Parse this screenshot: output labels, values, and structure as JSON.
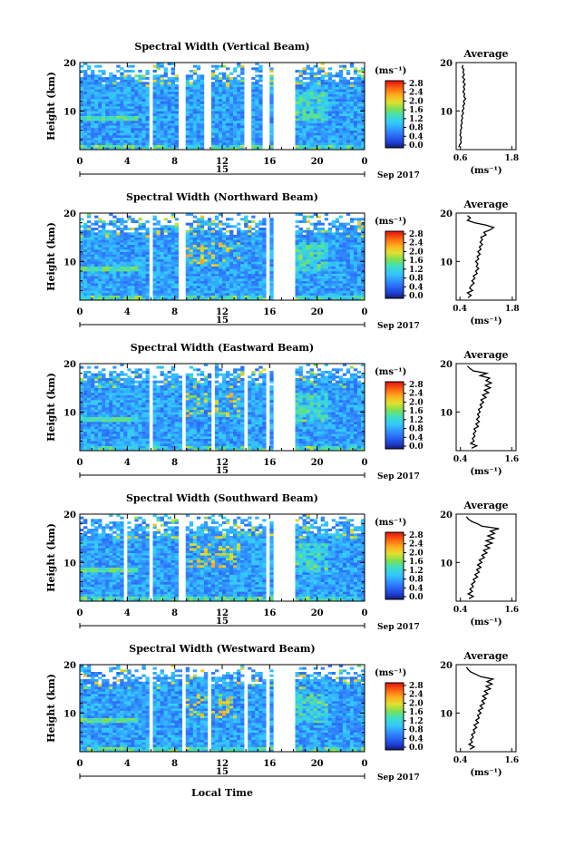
{
  "chart_data": [
    {
      "type": "heatmap",
      "title": "Spectral Width (Vertical Beam)",
      "ylabel": "Height (km)",
      "ylim": [
        2,
        20
      ],
      "yticks": [
        "20",
        "10"
      ],
      "xlim": [
        0,
        24
      ],
      "xticks": [
        "0",
        "4",
        "8",
        "12",
        "16",
        "20",
        "0"
      ],
      "date_label": "15",
      "date_suffix": "Sep 2017",
      "colorbar_unit": "(ms⁻¹)",
      "colorbar_ticks": [
        "2.8",
        "2.4",
        "2.0",
        "1.6",
        "1.2",
        "0.8",
        "0.4",
        "0.0"
      ],
      "colorbar_range": [
        0,
        3.0
      ],
      "gaps_hours": [
        [
          5.8,
          6.2
        ],
        [
          8.4,
          8.8
        ],
        [
          10.6,
          11.0
        ],
        [
          14.0,
          14.4
        ],
        [
          15.3,
          15.6
        ],
        [
          15.8,
          16.0
        ],
        [
          16.4,
          18.3
        ]
      ],
      "average": {
        "title": "Average",
        "xlabel": "(ms⁻¹)",
        "xticks": [
          "0.6",
          "1.8"
        ],
        "xlim": [
          0.5,
          1.9
        ],
        "yticks": [
          "20",
          "10"
        ],
        "profile": [
          [
            0.56,
            2.5
          ],
          [
            0.58,
            3
          ],
          [
            0.62,
            3.5
          ],
          [
            0.6,
            4
          ],
          [
            0.62,
            4.5
          ],
          [
            0.59,
            5
          ],
          [
            0.61,
            5.5
          ],
          [
            0.6,
            6
          ],
          [
            0.63,
            6.5
          ],
          [
            0.61,
            7
          ],
          [
            0.64,
            7.5
          ],
          [
            0.62,
            8
          ],
          [
            0.65,
            8.5
          ],
          [
            0.63,
            9
          ],
          [
            0.67,
            9.5
          ],
          [
            0.64,
            10
          ],
          [
            0.68,
            10.5
          ],
          [
            0.66,
            11
          ],
          [
            0.7,
            11.5
          ],
          [
            0.67,
            12
          ],
          [
            0.72,
            12.5
          ],
          [
            0.68,
            13
          ],
          [
            0.7,
            13.5
          ],
          [
            0.66,
            14
          ],
          [
            0.7,
            14.5
          ],
          [
            0.67,
            15
          ],
          [
            0.71,
            15.5
          ],
          [
            0.66,
            16
          ],
          [
            0.7,
            16.5
          ],
          [
            0.65,
            17
          ],
          [
            0.69,
            17.5
          ],
          [
            0.66,
            18
          ],
          [
            0.68,
            18.5
          ],
          [
            0.64,
            19
          ],
          [
            0.66,
            19.5
          ]
        ]
      }
    },
    {
      "type": "heatmap",
      "title": "Spectral Width (Northward Beam)",
      "ylabel": "Height (km)",
      "ylim": [
        2,
        20
      ],
      "yticks": [
        "20",
        "10"
      ],
      "xlim": [
        0,
        24
      ],
      "xticks": [
        "0",
        "4",
        "8",
        "12",
        "16",
        "20",
        "0"
      ],
      "date_label": "15",
      "date_suffix": "Sep 2017",
      "colorbar_unit": "(ms⁻¹)",
      "colorbar_ticks": [
        "2.8",
        "2.4",
        "2.0",
        "1.6",
        "1.2",
        "0.8",
        "0.4",
        "0.0"
      ],
      "colorbar_range": [
        0,
        3.0
      ],
      "gaps_hours": [
        [
          5.8,
          6.2
        ],
        [
          8.4,
          8.8
        ],
        [
          15.8,
          16.0
        ],
        [
          16.4,
          18.3
        ]
      ],
      "average": {
        "title": "Average",
        "xlabel": "(ms⁻¹)",
        "xticks": [
          "0.4",
          "1.8"
        ],
        "xlim": [
          0.3,
          1.9
        ],
        "yticks": [
          "20",
          "10"
        ],
        "profile": [
          [
            0.62,
            2.5
          ],
          [
            0.7,
            3
          ],
          [
            0.6,
            3.5
          ],
          [
            0.74,
            4
          ],
          [
            0.66,
            4.5
          ],
          [
            0.7,
            5
          ],
          [
            0.78,
            5.5
          ],
          [
            0.72,
            6
          ],
          [
            0.8,
            6.5
          ],
          [
            0.76,
            7
          ],
          [
            0.86,
            7.5
          ],
          [
            0.82,
            8
          ],
          [
            0.9,
            8.5
          ],
          [
            0.84,
            9
          ],
          [
            0.88,
            9.5
          ],
          [
            0.82,
            10
          ],
          [
            0.9,
            10.5
          ],
          [
            0.86,
            11
          ],
          [
            0.94,
            11.5
          ],
          [
            0.88,
            12
          ],
          [
            0.96,
            12.5
          ],
          [
            0.92,
            13
          ],
          [
            1.0,
            13.5
          ],
          [
            0.94,
            14
          ],
          [
            1.0,
            14.5
          ],
          [
            0.96,
            15
          ],
          [
            1.1,
            15.5
          ],
          [
            1.04,
            16
          ],
          [
            1.2,
            16.5
          ],
          [
            1.3,
            17
          ],
          [
            1.1,
            17.5
          ],
          [
            0.8,
            18
          ],
          [
            0.6,
            18.5
          ],
          [
            0.68,
            19
          ],
          [
            0.6,
            19.5
          ]
        ]
      }
    },
    {
      "type": "heatmap",
      "title": "Spectral Width (Eastward Beam)",
      "ylabel": "Height (km)",
      "ylim": [
        2,
        20
      ],
      "yticks": [
        "20",
        "10"
      ],
      "xlim": [
        0,
        24
      ],
      "xticks": [
        "0",
        "4",
        "8",
        "12",
        "16",
        "20",
        "0"
      ],
      "date_label": "15",
      "date_suffix": "Sep 2017",
      "colorbar_unit": "(ms⁻¹)",
      "colorbar_ticks": [
        "2.8",
        "2.4",
        "2.0",
        "1.6",
        "1.2",
        "0.8",
        "0.4",
        "0.0"
      ],
      "colorbar_range": [
        0,
        3.0
      ],
      "gaps_hours": [
        [
          5.8,
          6.2
        ],
        [
          8.6,
          9.0
        ],
        [
          11.0,
          11.3
        ],
        [
          14.0,
          14.3
        ],
        [
          15.6,
          15.9
        ],
        [
          16.4,
          18.3
        ]
      ],
      "average": {
        "title": "Average",
        "xlabel": "(ms⁻¹)",
        "xticks": [
          "0.4",
          "1.6"
        ],
        "xlim": [
          0.3,
          1.7
        ],
        "yticks": [
          "20",
          "10"
        ],
        "profile": [
          [
            0.66,
            2.5
          ],
          [
            0.78,
            3
          ],
          [
            0.64,
            3.5
          ],
          [
            0.72,
            4
          ],
          [
            0.68,
            4.5
          ],
          [
            0.74,
            5
          ],
          [
            0.7,
            5.5
          ],
          [
            0.76,
            6
          ],
          [
            0.72,
            6.5
          ],
          [
            0.82,
            7
          ],
          [
            0.76,
            7.5
          ],
          [
            0.84,
            8
          ],
          [
            0.78,
            8.5
          ],
          [
            0.84,
            9
          ],
          [
            0.8,
            9.5
          ],
          [
            0.86,
            10
          ],
          [
            0.82,
            10.5
          ],
          [
            0.9,
            11
          ],
          [
            0.86,
            11.5
          ],
          [
            0.94,
            12
          ],
          [
            0.88,
            12.5
          ],
          [
            1.0,
            13
          ],
          [
            0.92,
            13.5
          ],
          [
            1.06,
            14
          ],
          [
            0.96,
            14.5
          ],
          [
            1.1,
            15
          ],
          [
            0.98,
            15.5
          ],
          [
            1.12,
            16
          ],
          [
            1.0,
            16.5
          ],
          [
            1.08,
            17
          ],
          [
            0.86,
            17.5
          ],
          [
            1.02,
            18
          ],
          [
            0.7,
            18.5
          ],
          [
            0.62,
            19
          ],
          [
            0.56,
            19.5
          ]
        ]
      }
    },
    {
      "type": "heatmap",
      "title": "Spectral Width (Southward Beam)",
      "ylabel": "Height (km)",
      "ylim": [
        2,
        20
      ],
      "yticks": [
        "20",
        "10"
      ],
      "xlim": [
        0,
        24
      ],
      "xticks": [
        "0",
        "4",
        "8",
        "12",
        "16",
        "20",
        "0"
      ],
      "date_label": "15",
      "date_suffix": "Sep 2017",
      "colorbar_unit": "(ms⁻¹)",
      "colorbar_ticks": [
        "2.8",
        "2.4",
        "2.0",
        "1.6",
        "1.2",
        "0.8",
        "0.4",
        "0.0"
      ],
      "colorbar_range": [
        0,
        3.0
      ],
      "gaps_hours": [
        [
          3.8,
          4.1
        ],
        [
          5.8,
          6.2
        ],
        [
          8.4,
          8.8
        ],
        [
          15.8,
          16.0
        ],
        [
          16.4,
          18.3
        ]
      ],
      "average": {
        "title": "Average",
        "xlabel": "(ms⁻¹)",
        "xticks": [
          "0.4",
          "1.6"
        ],
        "xlim": [
          0.3,
          1.7
        ],
        "yticks": [
          "20",
          "10"
        ],
        "profile": [
          [
            0.6,
            2.5
          ],
          [
            0.7,
            3
          ],
          [
            0.58,
            3.5
          ],
          [
            0.68,
            4
          ],
          [
            0.62,
            4.5
          ],
          [
            0.7,
            5
          ],
          [
            0.66,
            5.5
          ],
          [
            0.74,
            6
          ],
          [
            0.7,
            6.5
          ],
          [
            0.8,
            7
          ],
          [
            0.74,
            7.5
          ],
          [
            0.84,
            8
          ],
          [
            0.78,
            8.5
          ],
          [
            0.88,
            9
          ],
          [
            0.8,
            9.5
          ],
          [
            0.9,
            10
          ],
          [
            0.84,
            10.5
          ],
          [
            0.96,
            11
          ],
          [
            0.9,
            11.5
          ],
          [
            1.02,
            12
          ],
          [
            0.94,
            12.5
          ],
          [
            1.08,
            13
          ],
          [
            0.98,
            13.5
          ],
          [
            1.14,
            14
          ],
          [
            1.0,
            14.5
          ],
          [
            1.18,
            15
          ],
          [
            1.04,
            15.5
          ],
          [
            1.2,
            16
          ],
          [
            1.1,
            16.5
          ],
          [
            1.3,
            17
          ],
          [
            0.9,
            17.5
          ],
          [
            0.8,
            18
          ],
          [
            0.66,
            18.5
          ],
          [
            0.58,
            19
          ],
          [
            0.54,
            19.5
          ]
        ]
      }
    },
    {
      "type": "heatmap",
      "title": "Spectral Width (Westward Beam)",
      "ylabel": "Height (km)",
      "ylim": [
        2,
        20
      ],
      "yticks": [
        "20",
        "10"
      ],
      "xlim": [
        0,
        24
      ],
      "xticks": [
        "0",
        "4",
        "8",
        "12",
        "16",
        "20",
        "0"
      ],
      "date_label": "15",
      "date_suffix": "Sep 2017",
      "colorbar_unit": "(ms⁻¹)",
      "colorbar_ticks": [
        "2.8",
        "2.4",
        "2.0",
        "1.6",
        "1.2",
        "0.8",
        "0.4",
        "0.0"
      ],
      "colorbar_range": [
        0,
        3.0
      ],
      "gaps_hours": [
        [
          5.8,
          6.2
        ],
        [
          8.6,
          9.0
        ],
        [
          10.8,
          11.1
        ],
        [
          14.0,
          14.3
        ],
        [
          15.6,
          15.9
        ],
        [
          16.4,
          18.3
        ]
      ],
      "average": {
        "title": "Average",
        "xlabel": "(ms⁻¹)",
        "xticks": [
          "0.4",
          "1.6"
        ],
        "xlim": [
          0.3,
          1.7
        ],
        "yticks": [
          "20",
          "10"
        ],
        "profile": [
          [
            0.62,
            2.5
          ],
          [
            0.72,
            3
          ],
          [
            0.6,
            3.5
          ],
          [
            0.68,
            4
          ],
          [
            0.64,
            4.5
          ],
          [
            0.7,
            5
          ],
          [
            0.66,
            5.5
          ],
          [
            0.74,
            6
          ],
          [
            0.7,
            6.5
          ],
          [
            0.78,
            7
          ],
          [
            0.72,
            7.5
          ],
          [
            0.82,
            8
          ],
          [
            0.76,
            8.5
          ],
          [
            0.84,
            9
          ],
          [
            0.8,
            9.5
          ],
          [
            0.88,
            10
          ],
          [
            0.82,
            10.5
          ],
          [
            0.92,
            11
          ],
          [
            0.86,
            11.5
          ],
          [
            0.96,
            12
          ],
          [
            0.9,
            12.5
          ],
          [
            1.0,
            13
          ],
          [
            0.92,
            13.5
          ],
          [
            1.04,
            14
          ],
          [
            0.96,
            14.5
          ],
          [
            1.1,
            15
          ],
          [
            1.0,
            15.5
          ],
          [
            1.14,
            16
          ],
          [
            1.02,
            16.5
          ],
          [
            1.16,
            17
          ],
          [
            0.88,
            17.5
          ],
          [
            0.76,
            18
          ],
          [
            0.64,
            18.5
          ],
          [
            0.58,
            19
          ],
          [
            0.54,
            19.5
          ]
        ]
      }
    }
  ],
  "xlabel": "Local Time"
}
